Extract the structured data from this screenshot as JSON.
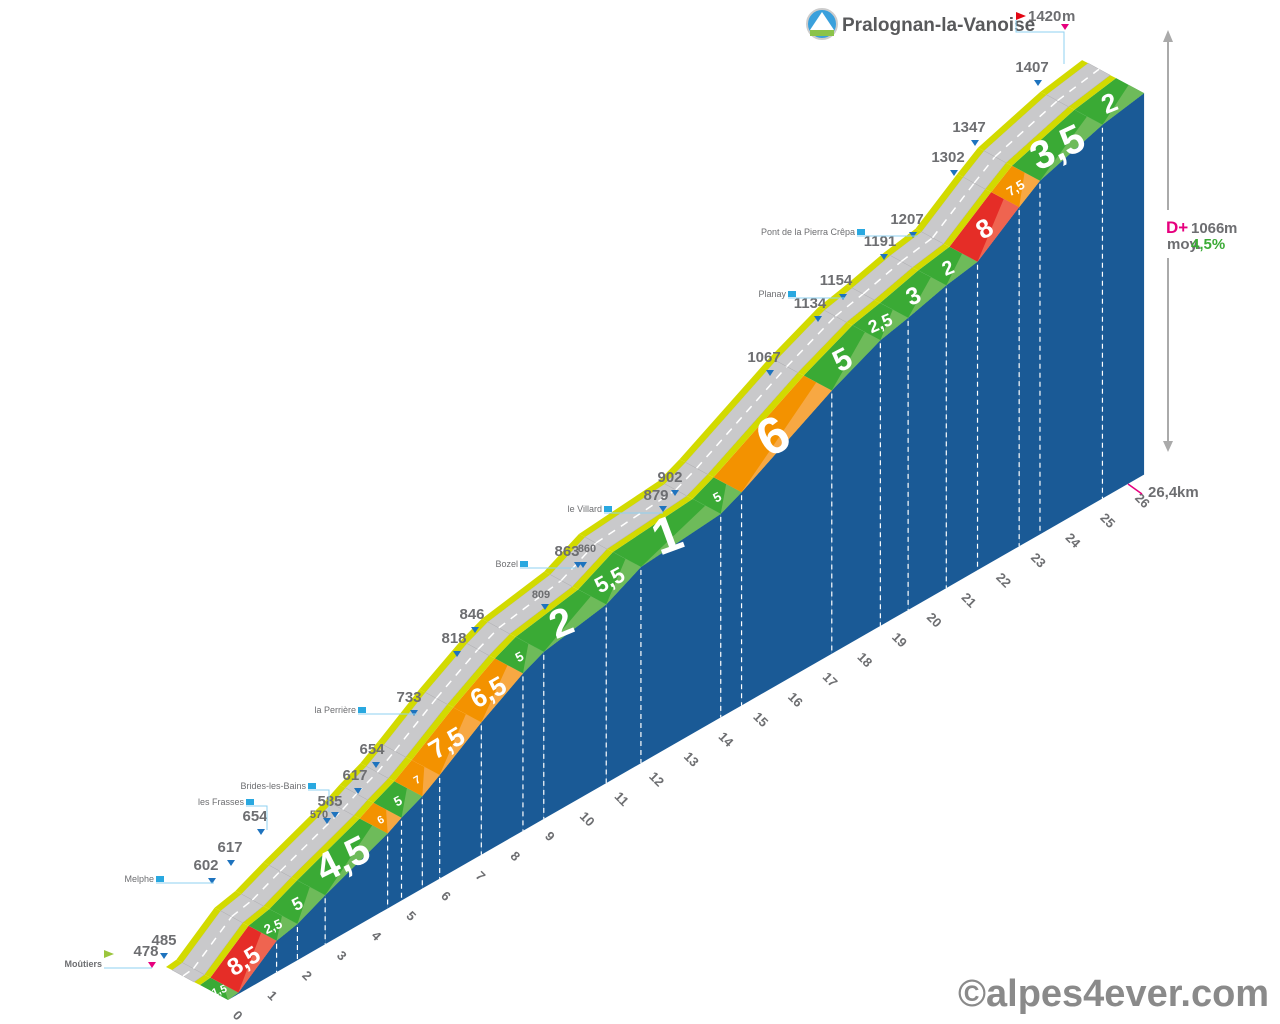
{
  "chart_data": {
    "type": "area",
    "title": "Pralognan-la-Vanoise",
    "summit": {
      "elevation": "1420",
      "unit": "m"
    },
    "start": "Moûtiers",
    "distance": {
      "value": "26,4",
      "unit": "km"
    },
    "elevation_gain": {
      "label": "D+",
      "value": "1066",
      "unit": "m"
    },
    "average_gradient": {
      "label": "moy.",
      "value": "4,5%"
    },
    "x_ticks": [
      "0",
      "1",
      "2",
      "3",
      "4",
      "5",
      "6",
      "7",
      "8",
      "9",
      "10",
      "11",
      "12",
      "13",
      "14",
      "15",
      "16",
      "17",
      "18",
      "19",
      "20",
      "21",
      "22",
      "23",
      "24",
      "25",
      "26"
    ],
    "segments": [
      {
        "from_km": 0,
        "to_km": 0.3,
        "gradient": "1,5"
      },
      {
        "from_km": 0.3,
        "to_km": 1.4,
        "gradient": "8,5"
      },
      {
        "from_km": 1.4,
        "to_km": 2.0,
        "gradient": "2,5"
      },
      {
        "from_km": 2.0,
        "to_km": 2.8,
        "gradient": "5"
      },
      {
        "from_km": 2.8,
        "to_km": 4.6,
        "gradient": "4,5"
      },
      {
        "from_km": 4.6,
        "to_km": 5.0,
        "gradient": "6"
      },
      {
        "from_km": 5.0,
        "to_km": 5.6,
        "gradient": "5"
      },
      {
        "from_km": 5.6,
        "to_km": 6.1,
        "gradient": "7"
      },
      {
        "from_km": 6.1,
        "to_km": 7.3,
        "gradient": "7,5"
      },
      {
        "from_km": 7.3,
        "to_km": 8.5,
        "gradient": "6,5"
      },
      {
        "from_km": 8.5,
        "to_km": 9.1,
        "gradient": "5"
      },
      {
        "from_km": 9.1,
        "to_km": 10.9,
        "gradient": "2"
      },
      {
        "from_km": 10.9,
        "to_km": 11.9,
        "gradient": "5,5"
      },
      {
        "from_km": 11.9,
        "to_km": 14.2,
        "gradient": "1"
      },
      {
        "from_km": 14.2,
        "to_km": 14.8,
        "gradient": "5"
      },
      {
        "from_km": 14.8,
        "to_km": 17.4,
        "gradient": "6"
      },
      {
        "from_km": 17.4,
        "to_km": 18.8,
        "gradient": "5"
      },
      {
        "from_km": 18.8,
        "to_km": 19.6,
        "gradient": "2,5"
      },
      {
        "from_km": 19.6,
        "to_km": 20.7,
        "gradient": "3"
      },
      {
        "from_km": 20.7,
        "to_km": 21.6,
        "gradient": "2"
      },
      {
        "from_km": 21.6,
        "to_km": 22.8,
        "gradient": "8"
      },
      {
        "from_km": 22.8,
        "to_km": 23.4,
        "gradient": "7,5"
      },
      {
        "from_km": 23.4,
        "to_km": 25.2,
        "gradient": "3,5"
      },
      {
        "from_km": 25.2,
        "to_km": 26.4,
        "gradient": "2"
      }
    ],
    "elevation_labels": [
      "478",
      "485",
      "602",
      "617",
      "654",
      "570",
      "585",
      "617",
      "654",
      "733",
      "818",
      "846",
      "809",
      "863",
      "860",
      "879",
      "902",
      "1067",
      "1134",
      "1154",
      "1191",
      "1207",
      "1302",
      "1347",
      "1407"
    ],
    "places": [
      "Moûtiers",
      "Melphe",
      "les Frasses",
      "Brides-les-Bains",
      "la Perrière",
      "Bozel",
      "le Villard",
      "Planay",
      "Pont de la Pierra Crêpa"
    ],
    "colors": {
      "wall": "#1a5a96",
      "road": "#c9c9cb",
      "edge": "#d2da00",
      "easy": "#3aaa35",
      "easy_light": "#74bd5e",
      "medium": "#f39200",
      "medium_light": "#f7ab4a",
      "hard": "#e52d27",
      "hard_light": "#ef6a55",
      "marker": "#1e73be",
      "summit_marker": "#e6007e",
      "accent_gain": "#e6007e",
      "accent_avg": "#3aaa35"
    }
  },
  "watermark": "©alpes4ever.com"
}
